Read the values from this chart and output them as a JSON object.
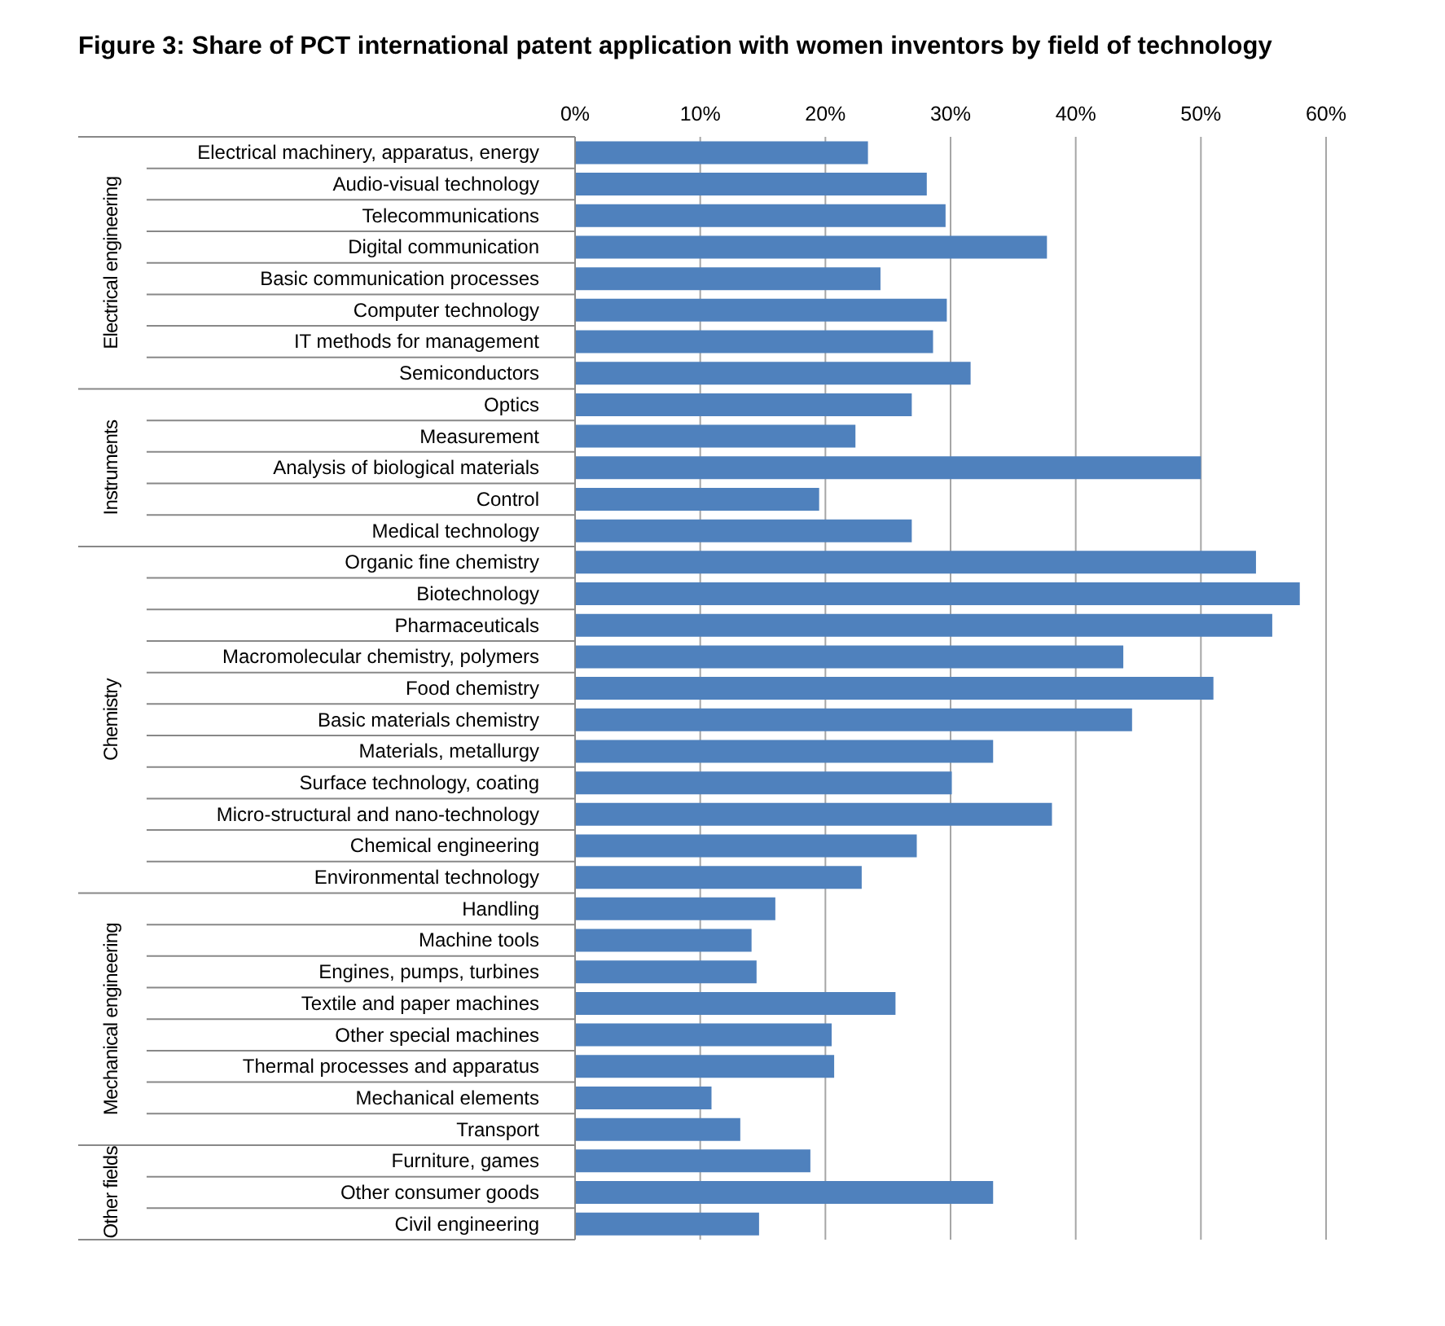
{
  "chart_data": {
    "type": "bar",
    "orientation": "horizontal",
    "title": "Figure 3:  Share of PCT international patent application with women inventors by field of technology",
    "categories": [
      "Electrical machinery, apparatus, energy",
      "Audio-visual technology",
      "Telecommunications",
      "Digital communication",
      "Basic communication processes",
      "Computer technology",
      "IT methods for management",
      "Semiconductors",
      "Optics",
      "Measurement",
      "Analysis of biological materials",
      "Control",
      "Medical technology",
      "Organic fine chemistry",
      "Biotechnology",
      "Pharmaceuticals",
      "Macromolecular chemistry, polymers",
      "Food chemistry",
      "Basic materials chemistry ",
      "Materials, metallurgy",
      "Surface technology, coating",
      "Micro-structural and nano-technology",
      "Chemical engineering",
      "Environmental technology",
      "Handling",
      "Machine tools",
      "Engines, pumps, turbines",
      "Textile and paper machines",
      "Other special machines",
      "Thermal processes and apparatus",
      "Mechanical elements",
      "Transport",
      "Furniture, games",
      "Other consumer goods",
      "Civil engineering"
    ],
    "values": [
      23.4,
      28.1,
      29.6,
      37.7,
      24.4,
      29.7,
      28.6,
      31.6,
      26.9,
      22.4,
      50.0,
      19.5,
      26.9,
      54.4,
      57.9,
      55.7,
      43.8,
      51.0,
      44.5,
      33.4,
      30.1,
      38.1,
      27.3,
      22.9,
      16.0,
      14.1,
      14.5,
      25.6,
      20.5,
      20.7,
      10.9,
      13.2,
      18.8,
      33.4,
      14.7
    ],
    "color": "#4f81bd",
    "xlim": [
      0,
      60
    ],
    "xticks": [
      {
        "value": 0,
        "label": "0%"
      },
      {
        "value": 10,
        "label": "10%"
      },
      {
        "value": 20,
        "label": "20%"
      },
      {
        "value": 30,
        "label": "30%"
      },
      {
        "value": 40,
        "label": "40%"
      },
      {
        "value": 50,
        "label": "50%"
      },
      {
        "value": 60,
        "label": "60%"
      }
    ],
    "grid": "x",
    "annotations": [
      "Electrical engineering",
      "Instruments",
      "Chemistry",
      "Mechanical engineering",
      "Other fields"
    ]
  }
}
